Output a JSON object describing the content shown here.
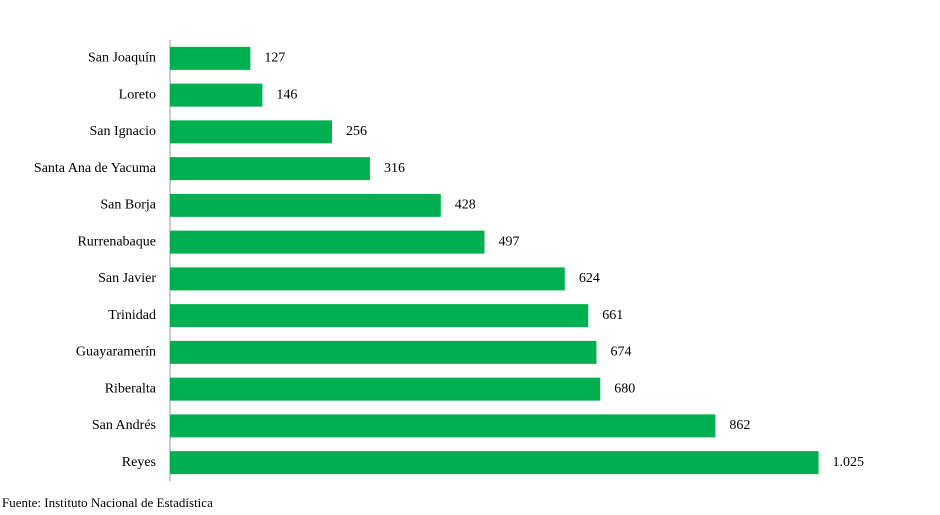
{
  "chart_data": {
    "type": "bar",
    "orientation": "horizontal",
    "categories": [
      "San Joaquín",
      "Loreto",
      "San Ignacio",
      "Santa Ana de Yacuma",
      "San Borja",
      "Rurrenabaque",
      "San Javier",
      "Trinidad",
      "Guayaramerín",
      "Riberalta",
      "San Andrés",
      "Reyes"
    ],
    "values": [
      127,
      146,
      256,
      316,
      428,
      497,
      624,
      661,
      674,
      680,
      862,
      1025
    ],
    "value_labels": [
      "127",
      "146",
      "256",
      "316",
      "428",
      "497",
      "624",
      "661",
      "674",
      "680",
      "862",
      "1.025"
    ],
    "color": "#00b050",
    "xlim": [
      0,
      1100
    ],
    "source": "Fuente: Instituto Nacional de Estadística"
  }
}
